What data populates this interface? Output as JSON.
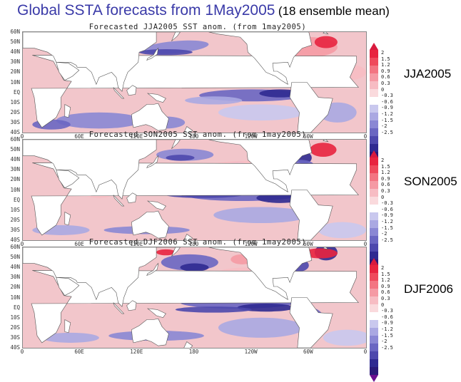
{
  "title": {
    "main": "Global SSTA forecasts from 1May2005",
    "sub": "(18 ensemble mean)"
  },
  "axes": {
    "lat_labels": [
      "60N",
      "50N",
      "40N",
      "30N",
      "20N",
      "10N",
      "EQ",
      "10S",
      "20S",
      "30S",
      "40S"
    ],
    "lon_labels": [
      "0",
      "60E",
      "120E",
      "180",
      "120W",
      "60W",
      "0"
    ]
  },
  "colorbar": {
    "labels": [
      "2",
      "1.5",
      "1.2",
      "0.9",
      "0.6",
      "0.3",
      "0",
      "-0.3",
      "-0.6",
      "-0.9",
      "-1.2",
      "-1.5",
      "-2",
      "-2.5"
    ],
    "colors": [
      "#e8243f",
      "#ef4a5c",
      "#f37582",
      "#f59aa4",
      "#f7bcc3",
      "#fadadd",
      "#ffffff",
      "#c9c8ee",
      "#aaa8e2",
      "#8a87d4",
      "#6a66c2",
      "#4d48ad",
      "#2f2a91",
      "#2a1a78"
    ]
  },
  "panels": [
    {
      "map_title": "Forecasted JJA2005 SST anom. (from 1may2005)",
      "season_label": "JJA2005"
    },
    {
      "map_title": "Forecasted SON2005 SST anom. (from 1may2005)",
      "season_label": "SON2005"
    },
    {
      "map_title": "Forecasted DJF2006 SST anom. (from 1may2005)",
      "season_label": "DJF2006"
    }
  ]
}
